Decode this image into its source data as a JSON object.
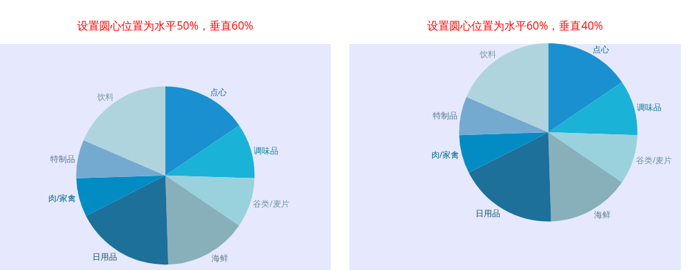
{
  "chart_data": [
    {
      "type": "pie",
      "title": "设置圆心位置为水平50%，垂直60%",
      "categories": [
        "点心",
        "调味品",
        "谷类/麦片",
        "海鲜",
        "日用品",
        "肉/家禽",
        "特制品",
        "饮料"
      ],
      "values": [
        15.5,
        10,
        9,
        15,
        18,
        7,
        7,
        18.5
      ],
      "colors": [
        "#1a90d0",
        "#1bb2d8",
        "#99d2dd",
        "#88b0bb",
        "#1c7099",
        "#038cc4",
        "#75aad0",
        "#b0d4de"
      ],
      "legend": false
    },
    {
      "type": "pie",
      "title": "设置圆心位置为水平60%，垂直40%",
      "categories": [
        "点心",
        "调味品",
        "谷类/麦片",
        "海鲜",
        "日用品",
        "肉/家禽",
        "特制品",
        "饮料"
      ],
      "values": [
        15.5,
        10,
        9,
        15,
        18,
        7,
        7,
        18.5
      ],
      "colors": [
        "#1a90d0",
        "#1bb2d8",
        "#99d2dd",
        "#88b0bb",
        "#1c7099",
        "#038cc4",
        "#75aad0",
        "#b0d4de"
      ],
      "legend": false
    }
  ]
}
